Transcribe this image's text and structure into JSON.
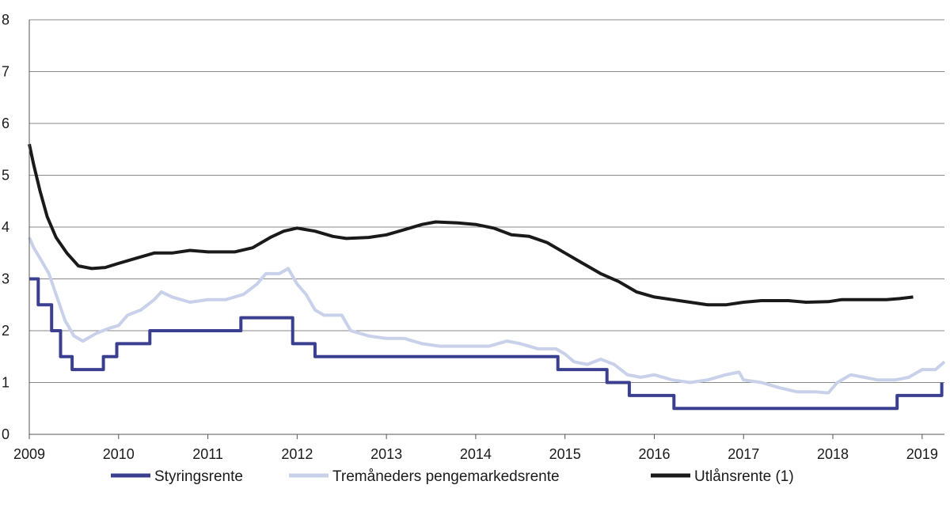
{
  "chart_data": {
    "type": "line",
    "title": "",
    "xlabel": "",
    "ylabel": "",
    "xlim": [
      2009.0,
      2019.25
    ],
    "ylim": [
      0,
      8
    ],
    "grid": true,
    "legend_position": "bottom",
    "x_ticks": [
      "2009",
      "2010",
      "2011",
      "2012",
      "2013",
      "2014",
      "2015",
      "2016",
      "2017",
      "2018",
      "2019"
    ],
    "y_ticks": [
      "0",
      "1",
      "2",
      "3",
      "4",
      "5",
      "6",
      "7",
      "8"
    ],
    "series": [
      {
        "name": "Styringsrente",
        "color": "#3b3f8f",
        "step": true,
        "points": [
          [
            2009.0,
            3.0
          ],
          [
            2009.1,
            2.5
          ],
          [
            2009.25,
            2.0
          ],
          [
            2009.35,
            1.5
          ],
          [
            2009.48,
            1.25
          ],
          [
            2009.83,
            1.5
          ],
          [
            2009.98,
            1.75
          ],
          [
            2010.35,
            2.0
          ],
          [
            2011.37,
            2.25
          ],
          [
            2011.95,
            1.75
          ],
          [
            2012.2,
            1.5
          ],
          [
            2014.92,
            1.25
          ],
          [
            2015.47,
            1.0
          ],
          [
            2015.72,
            0.75
          ],
          [
            2016.22,
            0.5
          ],
          [
            2018.72,
            0.75
          ],
          [
            2019.22,
            1.0
          ]
        ]
      },
      {
        "name": "Tremåneders pengemarkedsrente",
        "color": "#c9d1ea",
        "step": false,
        "points": [
          [
            2009.0,
            3.8
          ],
          [
            2009.05,
            3.6
          ],
          [
            2009.12,
            3.4
          ],
          [
            2009.22,
            3.1
          ],
          [
            2009.3,
            2.7
          ],
          [
            2009.4,
            2.2
          ],
          [
            2009.5,
            1.9
          ],
          [
            2009.6,
            1.8
          ],
          [
            2009.75,
            1.95
          ],
          [
            2009.9,
            2.05
          ],
          [
            2010.0,
            2.1
          ],
          [
            2010.1,
            2.3
          ],
          [
            2010.25,
            2.4
          ],
          [
            2010.4,
            2.6
          ],
          [
            2010.48,
            2.75
          ],
          [
            2010.6,
            2.65
          ],
          [
            2010.8,
            2.55
          ],
          [
            2011.0,
            2.6
          ],
          [
            2011.2,
            2.6
          ],
          [
            2011.4,
            2.7
          ],
          [
            2011.55,
            2.9
          ],
          [
            2011.65,
            3.1
          ],
          [
            2011.8,
            3.1
          ],
          [
            2011.9,
            3.2
          ],
          [
            2012.0,
            2.9
          ],
          [
            2012.1,
            2.7
          ],
          [
            2012.2,
            2.4
          ],
          [
            2012.3,
            2.3
          ],
          [
            2012.5,
            2.3
          ],
          [
            2012.6,
            2.0
          ],
          [
            2012.8,
            1.9
          ],
          [
            2013.0,
            1.85
          ],
          [
            2013.2,
            1.85
          ],
          [
            2013.4,
            1.75
          ],
          [
            2013.6,
            1.7
          ],
          [
            2013.8,
            1.7
          ],
          [
            2014.0,
            1.7
          ],
          [
            2014.15,
            1.7
          ],
          [
            2014.35,
            1.8
          ],
          [
            2014.5,
            1.75
          ],
          [
            2014.7,
            1.65
          ],
          [
            2014.9,
            1.65
          ],
          [
            2015.0,
            1.55
          ],
          [
            2015.1,
            1.4
          ],
          [
            2015.25,
            1.35
          ],
          [
            2015.4,
            1.45
          ],
          [
            2015.55,
            1.35
          ],
          [
            2015.7,
            1.15
          ],
          [
            2015.85,
            1.1
          ],
          [
            2016.0,
            1.15
          ],
          [
            2016.2,
            1.05
          ],
          [
            2016.4,
            1.0
          ],
          [
            2016.6,
            1.05
          ],
          [
            2016.8,
            1.15
          ],
          [
            2016.95,
            1.2
          ],
          [
            2017.0,
            1.05
          ],
          [
            2017.2,
            1.0
          ],
          [
            2017.4,
            0.9
          ],
          [
            2017.6,
            0.82
          ],
          [
            2017.8,
            0.82
          ],
          [
            2017.95,
            0.8
          ],
          [
            2018.05,
            1.0
          ],
          [
            2018.2,
            1.15
          ],
          [
            2018.35,
            1.1
          ],
          [
            2018.5,
            1.05
          ],
          [
            2018.7,
            1.05
          ],
          [
            2018.85,
            1.1
          ],
          [
            2019.0,
            1.25
          ],
          [
            2019.15,
            1.25
          ],
          [
            2019.25,
            1.4
          ]
        ]
      },
      {
        "name": "Utlånsrente (1)",
        "color": "#1a1a1a",
        "step": false,
        "points": [
          [
            2009.0,
            5.6
          ],
          [
            2009.05,
            5.2
          ],
          [
            2009.12,
            4.7
          ],
          [
            2009.2,
            4.2
          ],
          [
            2009.3,
            3.8
          ],
          [
            2009.42,
            3.5
          ],
          [
            2009.55,
            3.25
          ],
          [
            2009.7,
            3.2
          ],
          [
            2009.85,
            3.22
          ],
          [
            2010.0,
            3.3
          ],
          [
            2010.2,
            3.4
          ],
          [
            2010.4,
            3.5
          ],
          [
            2010.6,
            3.5
          ],
          [
            2010.8,
            3.55
          ],
          [
            2011.0,
            3.52
          ],
          [
            2011.3,
            3.52
          ],
          [
            2011.5,
            3.6
          ],
          [
            2011.7,
            3.8
          ],
          [
            2011.85,
            3.92
          ],
          [
            2012.0,
            3.98
          ],
          [
            2012.2,
            3.92
          ],
          [
            2012.4,
            3.82
          ],
          [
            2012.55,
            3.78
          ],
          [
            2012.8,
            3.8
          ],
          [
            2013.0,
            3.85
          ],
          [
            2013.2,
            3.95
          ],
          [
            2013.4,
            4.05
          ],
          [
            2013.55,
            4.1
          ],
          [
            2013.8,
            4.08
          ],
          [
            2014.0,
            4.05
          ],
          [
            2014.2,
            3.98
          ],
          [
            2014.4,
            3.85
          ],
          [
            2014.6,
            3.82
          ],
          [
            2014.8,
            3.7
          ],
          [
            2015.0,
            3.5
          ],
          [
            2015.2,
            3.3
          ],
          [
            2015.4,
            3.1
          ],
          [
            2015.6,
            2.95
          ],
          [
            2015.8,
            2.75
          ],
          [
            2016.0,
            2.65
          ],
          [
            2016.2,
            2.6
          ],
          [
            2016.4,
            2.55
          ],
          [
            2016.6,
            2.5
          ],
          [
            2016.8,
            2.5
          ],
          [
            2017.0,
            2.55
          ],
          [
            2017.2,
            2.58
          ],
          [
            2017.5,
            2.58
          ],
          [
            2017.7,
            2.55
          ],
          [
            2017.95,
            2.56
          ],
          [
            2018.1,
            2.6
          ],
          [
            2018.4,
            2.6
          ],
          [
            2018.6,
            2.6
          ],
          [
            2018.75,
            2.62
          ],
          [
            2018.9,
            2.65
          ]
        ]
      }
    ]
  }
}
